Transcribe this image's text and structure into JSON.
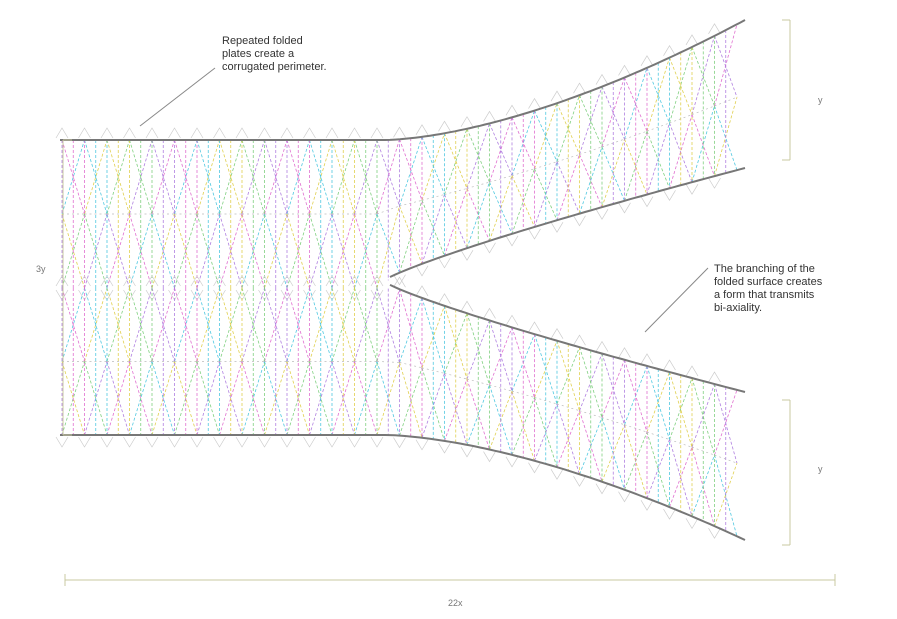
{
  "annotations": [
    {
      "lines": [
        "Repeated folded",
        "plates create a",
        "corrugated perimeter."
      ]
    },
    {
      "lines": [
        "The branching of the",
        "folded surface creates",
        "a form that transmits",
        "bi-axiality."
      ]
    }
  ],
  "dimensions": {
    "height_total": "3y",
    "branch_upper": "y",
    "branch_lower": "y",
    "length": "22x"
  }
}
